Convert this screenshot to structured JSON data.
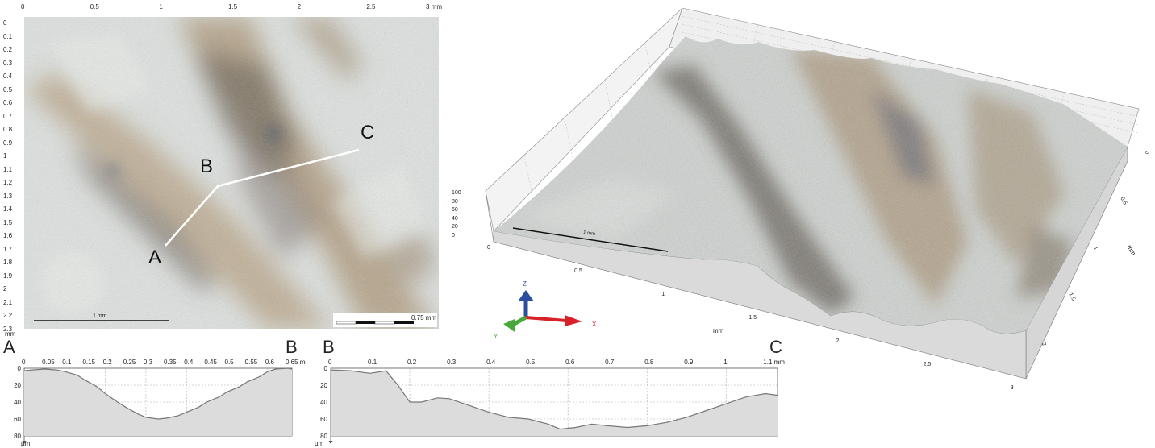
{
  "micrograph": {
    "x_ticks": [
      "0",
      "0.5",
      "1",
      "1.5",
      "2",
      "2.5",
      "3 mm"
    ],
    "y_ticks": [
      "0",
      "0.1",
      "0.2",
      "0.3",
      "0.4",
      "0.5",
      "0.6",
      "0.7",
      "0.8",
      "0.9",
      "1",
      "1.1",
      "1.2",
      "1.3",
      "1.4",
      "1.5",
      "1.6",
      "1.7",
      "1.8",
      "1.9",
      "2",
      "2.1",
      "2.2",
      "2.3"
    ],
    "y_unit": "mm",
    "scale_bar_label": "1 mm",
    "scale_bar2_label": "0.75 mm",
    "points": [
      "A",
      "B",
      "C"
    ]
  },
  "view3d": {
    "z_ticks": [
      "100",
      "80",
      "60",
      "40",
      "20",
      "0"
    ],
    "x_ticks": [
      "0",
      "0.5",
      "1",
      "1.5",
      "2",
      "2.5",
      "3"
    ],
    "x_unit": "mm",
    "y_ticks": [
      "0",
      "0.5",
      "1",
      "1.5",
      "2"
    ],
    "y_unit": "mm",
    "scale_bar_label": "1 mm",
    "axes": {
      "z": "Z",
      "x": "X",
      "y": "Y"
    },
    "colors": {
      "z": "#2b4f9e",
      "x": "#d8222a",
      "y": "#4aa83a"
    }
  },
  "profiles": [
    {
      "start_label": "A",
      "end_label": "B",
      "x_ticks": [
        "0",
        "0.05",
        "0.1",
        "0.15",
        "0.2",
        "0.25",
        "0.3",
        "0.35",
        "0.4",
        "0.45",
        "0.5",
        "0.55",
        "0.6",
        "0.65 mm"
      ],
      "y_ticks": [
        "0",
        "20",
        "40",
        "60",
        "80"
      ],
      "y_unit": "µm",
      "x_unit": "mm",
      "chart_data": {
        "type": "area",
        "x": [
          0,
          0.02,
          0.05,
          0.08,
          0.1,
          0.13,
          0.15,
          0.18,
          0.2,
          0.23,
          0.25,
          0.28,
          0.3,
          0.33,
          0.35,
          0.38,
          0.4,
          0.43,
          0.45,
          0.48,
          0.5,
          0.53,
          0.55,
          0.58,
          0.6,
          0.62,
          0.65,
          0.66
        ],
        "y": [
          3,
          2,
          1,
          2,
          4,
          8,
          14,
          22,
          30,
          40,
          46,
          54,
          58,
          60,
          59,
          56,
          52,
          46,
          40,
          34,
          28,
          22,
          16,
          10,
          4,
          1,
          0,
          1
        ],
        "xlim": [
          0,
          0.66
        ],
        "ylim": [
          0,
          80
        ]
      }
    },
    {
      "start_label": "B",
      "end_label": "C",
      "x_ticks": [
        "0",
        "0.1",
        "0.2",
        "0.3",
        "0.4",
        "0.5",
        "0.6",
        "0.7",
        "0.8",
        "0.9",
        "1",
        "1.1 mm"
      ],
      "y_ticks": [
        "0",
        "20",
        "40",
        "60",
        "80"
      ],
      "y_unit": "µm",
      "x_unit": "mm",
      "chart_data": {
        "type": "area",
        "x": [
          0,
          0.05,
          0.1,
          0.14,
          0.17,
          0.2,
          0.23,
          0.27,
          0.3,
          0.35,
          0.4,
          0.45,
          0.5,
          0.55,
          0.58,
          0.62,
          0.66,
          0.7,
          0.75,
          0.8,
          0.85,
          0.9,
          0.95,
          1.0,
          1.05,
          1.1,
          1.13
        ],
        "y": [
          2,
          3,
          6,
          3,
          20,
          40,
          40,
          35,
          36,
          44,
          52,
          58,
          60,
          66,
          72,
          70,
          66,
          68,
          70,
          68,
          64,
          58,
          50,
          42,
          34,
          30,
          32
        ],
        "xlim": [
          0,
          1.13
        ],
        "ylim": [
          0,
          80
        ]
      }
    }
  ]
}
